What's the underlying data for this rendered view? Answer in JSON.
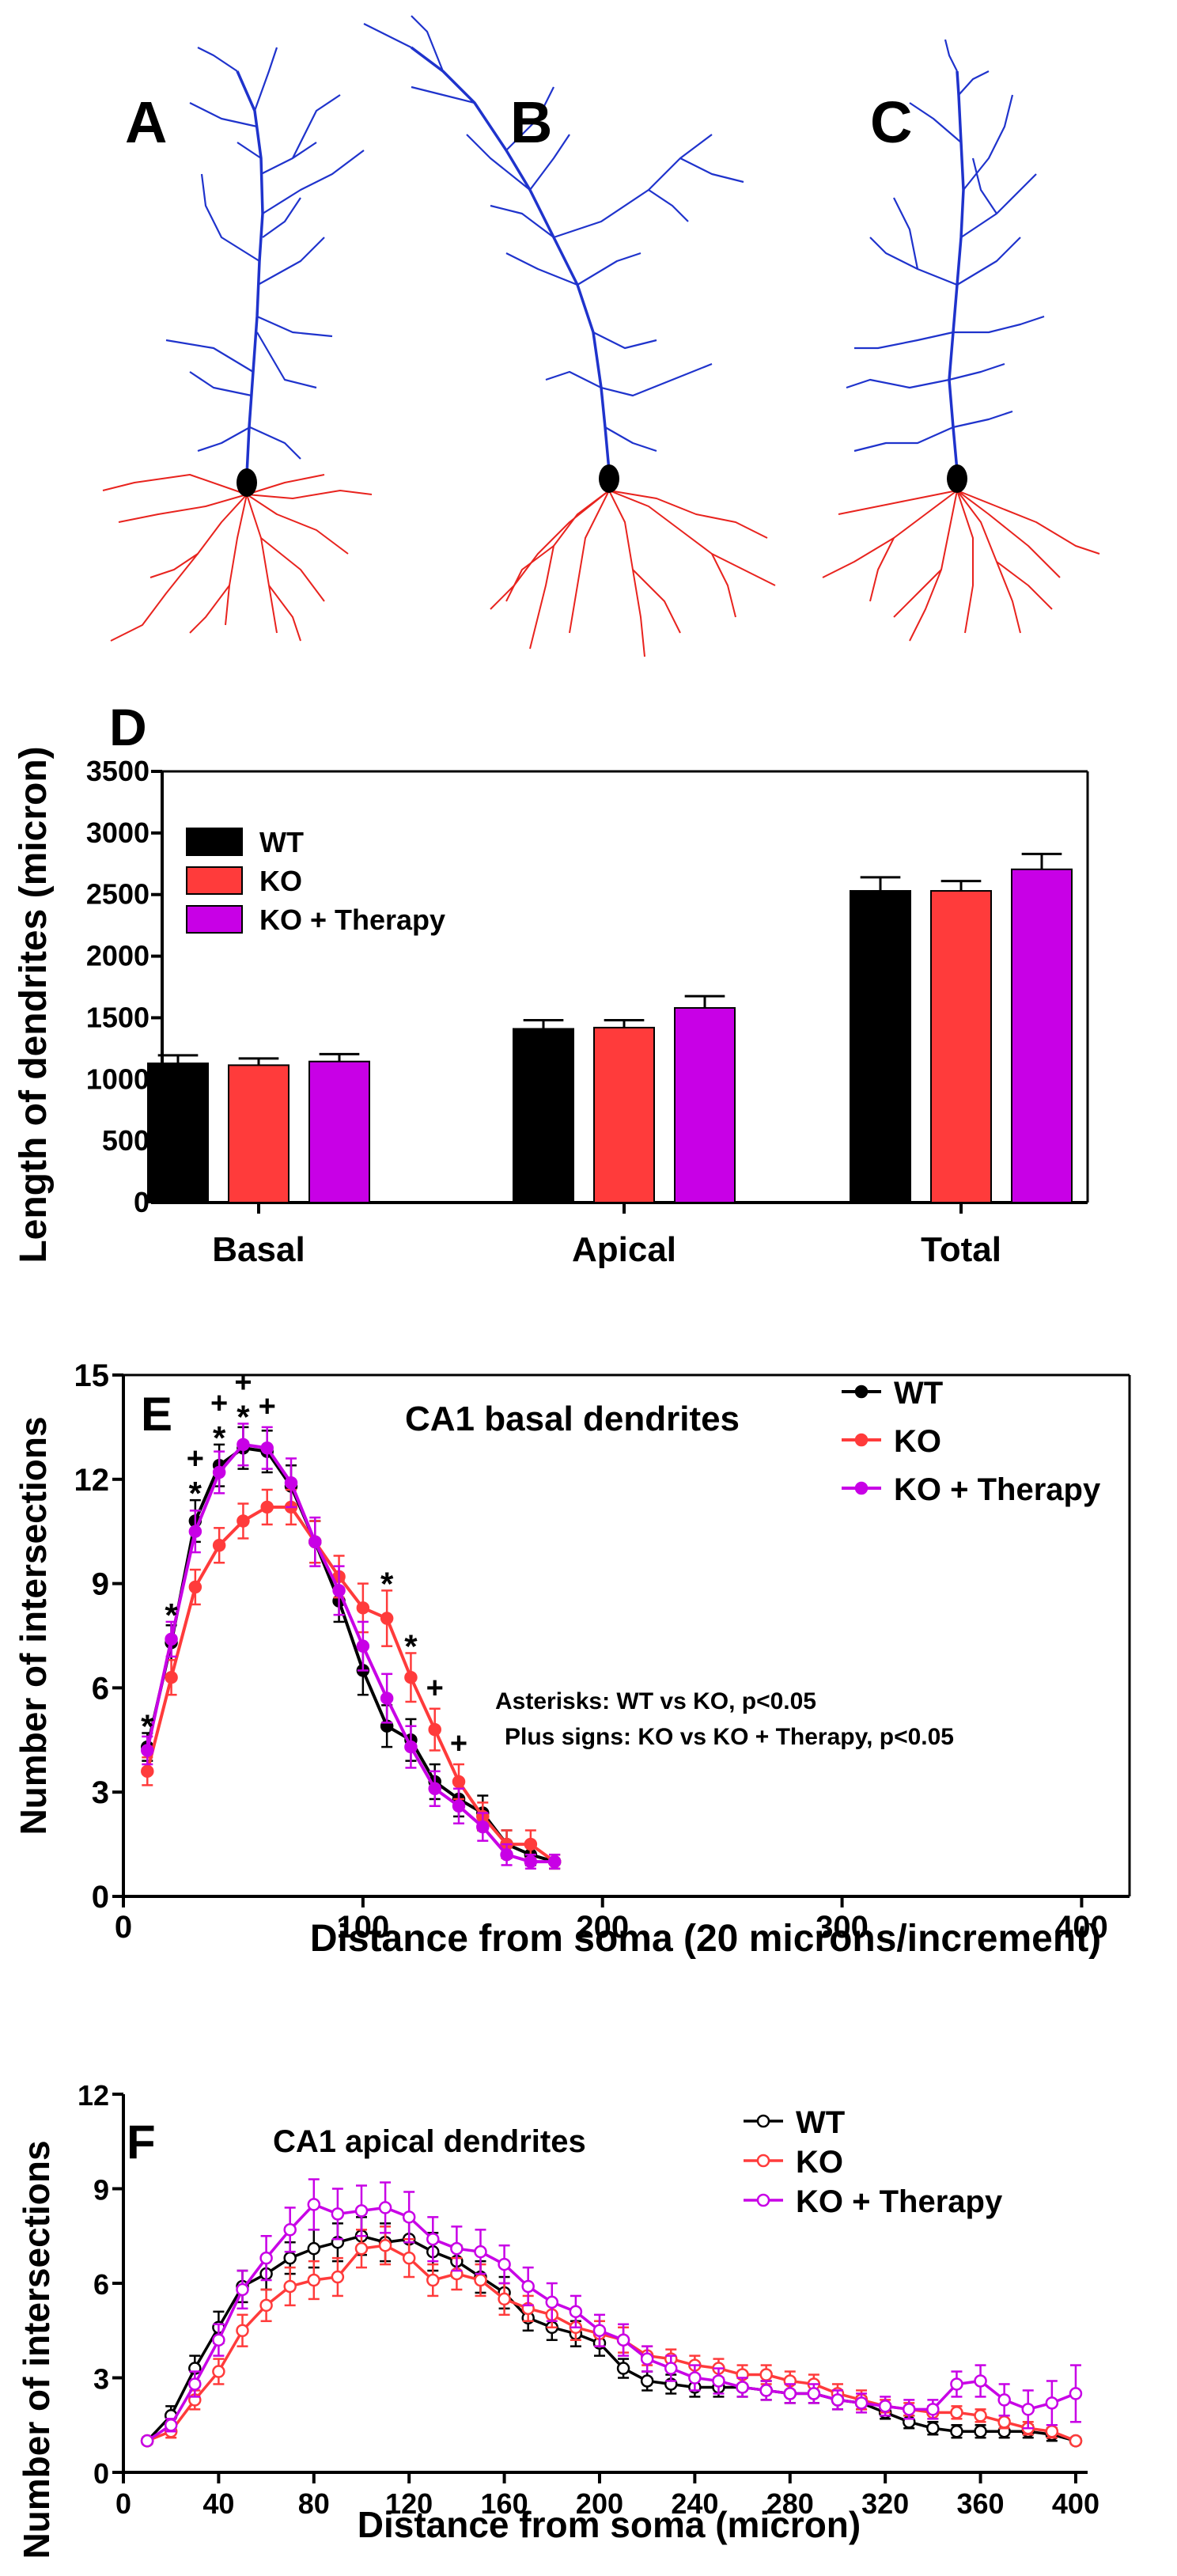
{
  "panels": {
    "a_label": "A",
    "b_label": "B",
    "c_label": "C"
  },
  "colors": {
    "wt": "#000000",
    "ko": "#ff3b3b",
    "therapy": "#c800e6",
    "apical_dendrite": "#1f33cc",
    "basal_dendrite": "#e8231e",
    "soma": "#000000"
  },
  "chart_data": [
    {
      "panel": "D",
      "type": "bar",
      "ylabel": "Length of dendrites (micron)",
      "ylim": [
        0,
        3500
      ],
      "yticks": [
        0,
        500,
        1000,
        1500,
        2000,
        2500,
        3000,
        3500
      ],
      "categories": [
        "Basal",
        "Apical",
        "Total"
      ],
      "legend": [
        "WT",
        "KO",
        "KO + Therapy"
      ],
      "series": [
        {
          "name": "WT",
          "values": [
            1130,
            1410,
            2530
          ],
          "errors": [
            65,
            70,
            110
          ]
        },
        {
          "name": "KO",
          "values": [
            1115,
            1420,
            2530
          ],
          "errors": [
            55,
            60,
            80
          ]
        },
        {
          "name": "KO + Therapy",
          "values": [
            1145,
            1580,
            2705
          ],
          "errors": [
            60,
            95,
            125
          ]
        }
      ]
    },
    {
      "panel": "E",
      "type": "line",
      "title": "CA1 basal dendrites",
      "xlabel": "Distance from soma (20 microns/increment)",
      "ylabel": "Number of intersections",
      "xlim": [
        0,
        420
      ],
      "ylim": [
        0,
        15
      ],
      "xticks": [
        0,
        100,
        200,
        300,
        400
      ],
      "yticks": [
        0,
        3,
        6,
        9,
        12,
        15
      ],
      "legend": [
        "WT",
        "KO",
        "KO + Therapy"
      ],
      "annotation_1": "Asterisks: WT vs KO, p<0.05",
      "annotation_2": "Plus signs: KO vs KO + Therapy, p<0.05",
      "asterisk_x": [
        10,
        20,
        30,
        40,
        50,
        110,
        120
      ],
      "plus_x": [
        30,
        40,
        50,
        60,
        130,
        140
      ],
      "series": [
        {
          "name": "WT",
          "x": [
            10,
            20,
            30,
            40,
            50,
            60,
            70,
            80,
            90,
            100,
            110,
            120,
            130,
            140,
            150,
            160,
            170,
            180
          ],
          "values": [
            4.3,
            7.3,
            10.8,
            12.4,
            12.9,
            12.8,
            11.8,
            10.2,
            8.5,
            6.5,
            4.9,
            4.5,
            3.3,
            2.8,
            2.4,
            1.5,
            1.2,
            1.0
          ],
          "errors": [
            0.4,
            0.5,
            0.6,
            0.6,
            0.6,
            0.6,
            0.6,
            0.6,
            0.6,
            0.7,
            0.6,
            0.6,
            0.5,
            0.5,
            0.5,
            0.4,
            0.3,
            0.2
          ]
        },
        {
          "name": "KO",
          "x": [
            10,
            20,
            30,
            40,
            50,
            60,
            70,
            80,
            90,
            100,
            110,
            120,
            130,
            140,
            150,
            160,
            170,
            180
          ],
          "values": [
            3.6,
            6.3,
            8.9,
            10.1,
            10.8,
            11.2,
            11.2,
            10.2,
            9.2,
            8.3,
            8.0,
            6.3,
            4.8,
            3.3,
            2.3,
            1.5,
            1.5,
            1.0
          ],
          "errors": [
            0.4,
            0.5,
            0.5,
            0.5,
            0.5,
            0.5,
            0.5,
            0.6,
            0.6,
            0.7,
            0.8,
            0.7,
            0.6,
            0.5,
            0.4,
            0.4,
            0.4,
            0.2
          ]
        },
        {
          "name": "KO + Therapy",
          "x": [
            10,
            20,
            30,
            40,
            50,
            60,
            70,
            80,
            90,
            100,
            110,
            120,
            130,
            140,
            150,
            160,
            170,
            180
          ],
          "values": [
            4.2,
            7.4,
            10.5,
            12.2,
            13.0,
            12.9,
            11.9,
            10.2,
            8.8,
            7.2,
            5.7,
            4.3,
            3.1,
            2.6,
            2.0,
            1.2,
            1.0,
            1.0
          ],
          "errors": [
            0.4,
            0.5,
            0.6,
            0.6,
            0.6,
            0.6,
            0.7,
            0.7,
            0.7,
            0.7,
            0.7,
            0.6,
            0.5,
            0.5,
            0.4,
            0.3,
            0.2,
            0.2
          ]
        }
      ]
    },
    {
      "panel": "F",
      "type": "line",
      "title": "CA1 apical dendrites",
      "xlabel": "Distance from soma (micron)",
      "ylabel": "Number of intersections",
      "xlim": [
        0,
        405
      ],
      "ylim": [
        0,
        12
      ],
      "xticks": [
        0,
        40,
        80,
        120,
        160,
        200,
        240,
        280,
        320,
        360,
        400
      ],
      "yticks": [
        0,
        3,
        6,
        9,
        12
      ],
      "legend": [
        "WT",
        "KO",
        "KO + Therapy"
      ],
      "series": [
        {
          "name": "WT",
          "x": [
            10,
            20,
            30,
            40,
            50,
            60,
            70,
            80,
            90,
            100,
            110,
            120,
            130,
            140,
            150,
            160,
            170,
            180,
            190,
            200,
            210,
            220,
            230,
            240,
            250,
            260,
            270,
            280,
            290,
            300,
            310,
            320,
            330,
            340,
            350,
            360,
            370,
            380,
            390,
            400
          ],
          "values": [
            1.0,
            1.8,
            3.3,
            4.6,
            5.9,
            6.3,
            6.8,
            7.1,
            7.3,
            7.5,
            7.3,
            7.4,
            7.0,
            6.7,
            6.2,
            5.7,
            4.9,
            4.6,
            4.4,
            4.1,
            3.3,
            2.9,
            2.8,
            2.7,
            2.7,
            2.7,
            2.6,
            2.5,
            2.5,
            2.3,
            2.2,
            1.9,
            1.6,
            1.4,
            1.3,
            1.3,
            1.3,
            1.3,
            1.2,
            1.0
          ],
          "errors": [
            0.1,
            0.3,
            0.4,
            0.5,
            0.5,
            0.5,
            0.5,
            0.6,
            0.6,
            0.6,
            0.6,
            0.6,
            0.6,
            0.5,
            0.5,
            0.5,
            0.4,
            0.4,
            0.4,
            0.4,
            0.3,
            0.3,
            0.3,
            0.3,
            0.3,
            0.3,
            0.3,
            0.3,
            0.3,
            0.3,
            0.2,
            0.2,
            0.2,
            0.2,
            0.2,
            0.2,
            0.2,
            0.2,
            0.2,
            0.1
          ]
        },
        {
          "name": "KO",
          "x": [
            10,
            20,
            30,
            40,
            50,
            60,
            70,
            80,
            90,
            100,
            110,
            120,
            130,
            140,
            150,
            160,
            170,
            180,
            190,
            200,
            210,
            220,
            230,
            240,
            250,
            260,
            270,
            280,
            290,
            300,
            310,
            320,
            330,
            340,
            350,
            360,
            370,
            380,
            390,
            400
          ],
          "values": [
            1.0,
            1.3,
            2.3,
            3.2,
            4.5,
            5.3,
            5.9,
            6.1,
            6.2,
            7.1,
            7.2,
            6.8,
            6.1,
            6.3,
            6.1,
            5.5,
            5.2,
            5.0,
            4.6,
            4.4,
            4.2,
            3.7,
            3.6,
            3.4,
            3.3,
            3.1,
            3.1,
            2.9,
            2.8,
            2.5,
            2.3,
            2.1,
            2.0,
            1.9,
            1.9,
            1.8,
            1.6,
            1.4,
            1.3,
            1.0
          ],
          "errors": [
            0.1,
            0.2,
            0.3,
            0.4,
            0.5,
            0.5,
            0.6,
            0.6,
            0.6,
            0.6,
            0.6,
            0.6,
            0.5,
            0.5,
            0.5,
            0.5,
            0.4,
            0.4,
            0.4,
            0.4,
            0.4,
            0.3,
            0.3,
            0.3,
            0.3,
            0.3,
            0.3,
            0.3,
            0.3,
            0.3,
            0.3,
            0.2,
            0.2,
            0.2,
            0.2,
            0.2,
            0.2,
            0.2,
            0.2,
            0.1
          ]
        },
        {
          "name": "KO + Therapy",
          "x": [
            10,
            20,
            30,
            40,
            50,
            60,
            70,
            80,
            90,
            100,
            110,
            120,
            130,
            140,
            150,
            160,
            170,
            180,
            190,
            200,
            210,
            220,
            230,
            240,
            250,
            260,
            270,
            280,
            290,
            300,
            310,
            320,
            330,
            340,
            350,
            360,
            370,
            380,
            390,
            400
          ],
          "values": [
            1.0,
            1.5,
            2.8,
            4.2,
            5.8,
            6.8,
            7.7,
            8.5,
            8.2,
            8.3,
            8.4,
            8.1,
            7.4,
            7.1,
            7.0,
            6.6,
            5.9,
            5.4,
            5.1,
            4.5,
            4.2,
            3.6,
            3.3,
            3.0,
            2.9,
            2.7,
            2.6,
            2.5,
            2.5,
            2.3,
            2.2,
            2.1,
            2.0,
            2.0,
            2.8,
            2.9,
            2.3,
            2.0,
            2.2,
            2.5
          ],
          "errors": [
            0.1,
            0.2,
            0.4,
            0.5,
            0.6,
            0.7,
            0.7,
            0.8,
            0.8,
            0.8,
            0.8,
            0.8,
            0.7,
            0.7,
            0.7,
            0.6,
            0.6,
            0.6,
            0.5,
            0.5,
            0.5,
            0.4,
            0.4,
            0.4,
            0.4,
            0.3,
            0.3,
            0.3,
            0.3,
            0.3,
            0.3,
            0.3,
            0.3,
            0.3,
            0.4,
            0.5,
            0.5,
            0.6,
            0.7,
            0.9
          ]
        }
      ]
    }
  ]
}
